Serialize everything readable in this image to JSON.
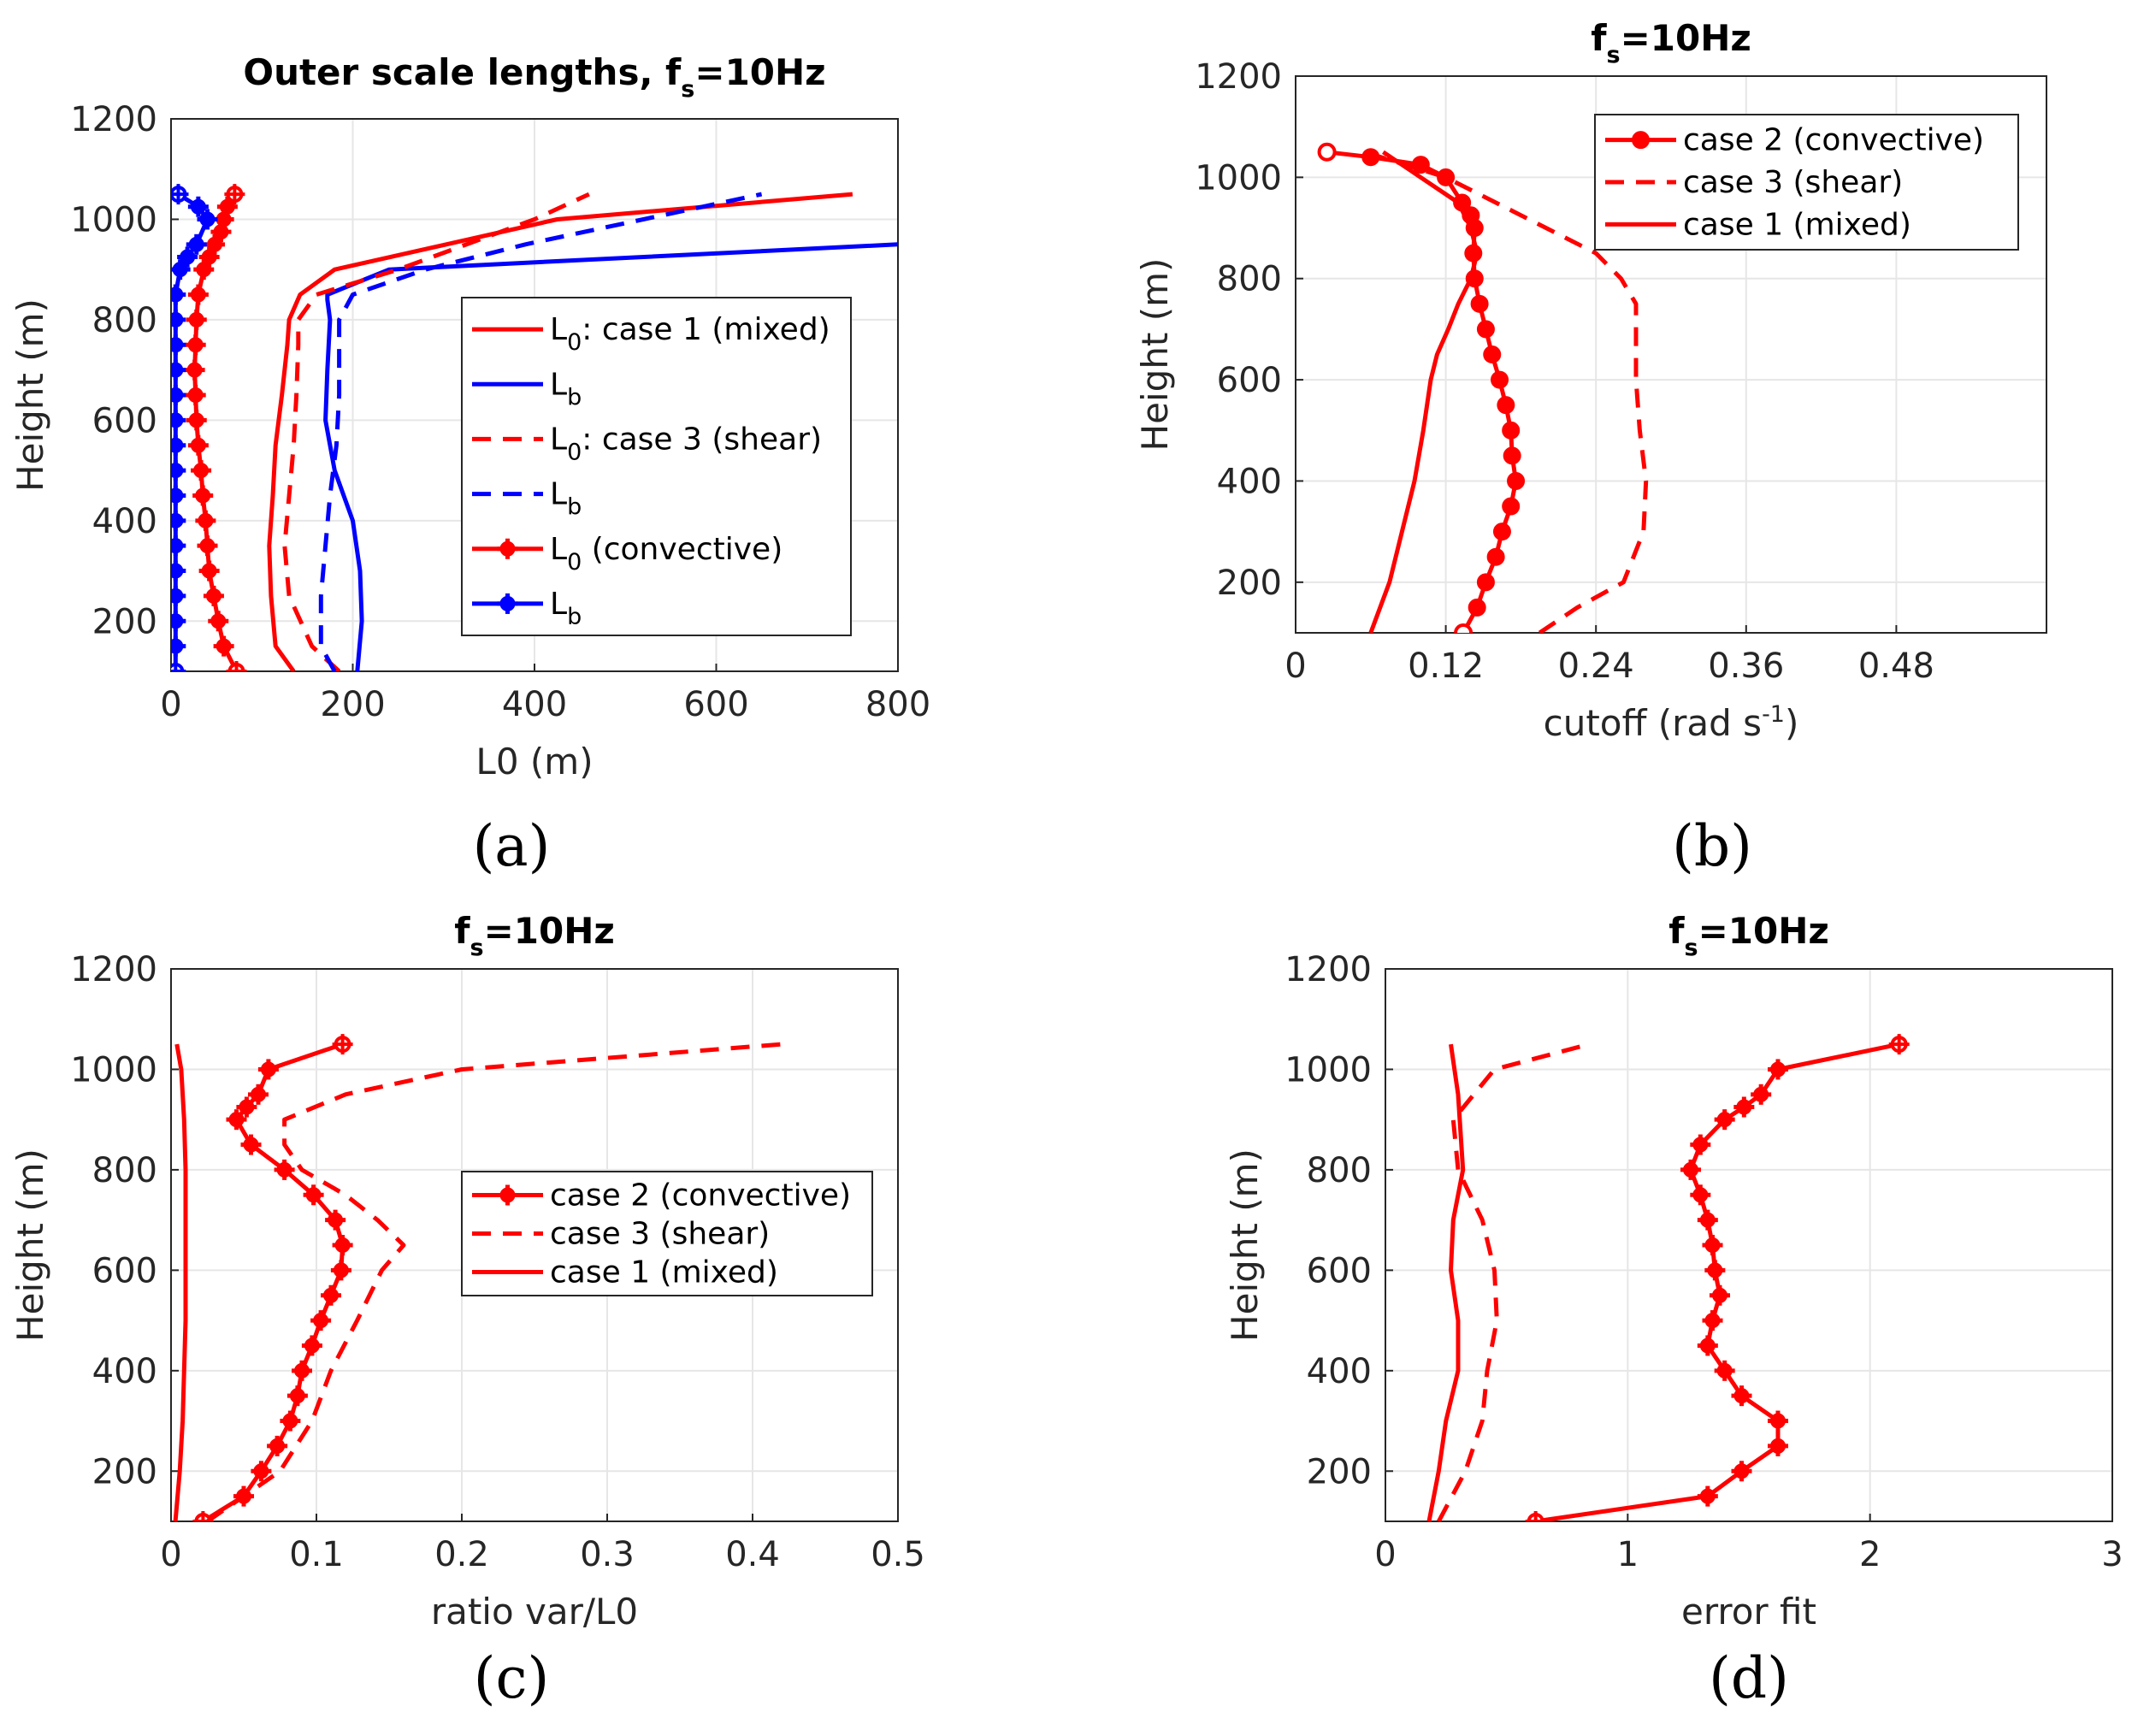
{
  "chart_data": [
    {
      "id": "a",
      "type": "line",
      "panel_label": "(a)",
      "title": "Outer scale lengths, f",
      "title_sub": "s",
      "title_suffix": "=10Hz",
      "xlabel": "L0 (m)",
      "ylabel": "Height (m)",
      "xlim": [
        0,
        800
      ],
      "ylim": [
        100,
        1200
      ],
      "xticks": [
        0,
        200,
        400,
        600,
        800
      ],
      "yticks": [
        200,
        400,
        600,
        800,
        1000,
        1200
      ],
      "grid": true,
      "legend_position": "center-right",
      "series": [
        {
          "legend": "L",
          "legend_sub": "0",
          "legend_suffix": ": case 1 (mixed)",
          "color": "#ff0000",
          "style": "solid",
          "marker": "none",
          "x": [
            135,
            115,
            110,
            108,
            112,
            115,
            122,
            128,
            130,
            142,
            180,
            425,
            750
          ],
          "y": [
            100,
            150,
            250,
            350,
            450,
            550,
            650,
            750,
            800,
            850,
            900,
            1000,
            1050
          ]
        },
        {
          "legend": "L",
          "legend_sub": "b",
          "legend_suffix": "",
          "color": "#0000ff",
          "style": "solid",
          "marker": "none",
          "x": [
            205,
            210,
            208,
            200,
            180,
            170,
            172,
            175,
            172,
            172,
            240,
            800
          ],
          "y": [
            100,
            200,
            300,
            400,
            500,
            600,
            700,
            800,
            840,
            850,
            900,
            950
          ]
        },
        {
          "legend": "L",
          "legend_sub": "0",
          "legend_suffix": ": case 3 (shear)",
          "color": "#ff0000",
          "style": "dash",
          "marker": "none",
          "x": [
            185,
            155,
            130,
            125,
            130,
            135,
            138,
            140,
            140,
            160,
            250,
            400,
            460
          ],
          "y": [
            100,
            150,
            250,
            350,
            450,
            550,
            650,
            750,
            800,
            850,
            900,
            1000,
            1050
          ]
        },
        {
          "legend": "L",
          "legend_sub": "b",
          "legend_suffix": "",
          "color": "#0000ff",
          "style": "dash",
          "marker": "none",
          "x": [
            180,
            165,
            165,
            170,
            175,
            182,
            185,
            185,
            185,
            200,
            280,
            390,
            650
          ],
          "y": [
            100,
            150,
            250,
            350,
            450,
            550,
            650,
            750,
            800,
            850,
            900,
            950,
            1050
          ]
        },
        {
          "legend": "L",
          "legend_sub": "0",
          "legend_suffix": " (convective)",
          "color": "#ff0000",
          "style": "solid",
          "marker": "plus",
          "x": [
            72,
            58,
            52,
            47,
            42,
            40,
            38,
            35,
            33,
            30,
            28,
            27,
            26,
            27,
            28,
            30,
            36,
            42,
            48,
            55,
            58,
            62,
            70
          ],
          "y": [
            100,
            150,
            200,
            250,
            300,
            350,
            400,
            450,
            500,
            550,
            600,
            650,
            700,
            750,
            800,
            850,
            900,
            925,
            950,
            975,
            1000,
            1025,
            1050
          ]
        },
        {
          "legend": "L",
          "legend_sub": "b",
          "legend_suffix": "",
          "color": "#0000ff",
          "style": "solid",
          "marker": "plus",
          "x": [
            5,
            5,
            5,
            5,
            5,
            5,
            5,
            5,
            5,
            5,
            5,
            5,
            5,
            5,
            5,
            5,
            10,
            18,
            28,
            40,
            30,
            8
          ],
          "y": [
            100,
            150,
            200,
            250,
            300,
            350,
            400,
            450,
            500,
            550,
            600,
            650,
            700,
            750,
            800,
            850,
            900,
            925,
            950,
            1000,
            1025,
            1050
          ]
        }
      ]
    },
    {
      "id": "b",
      "type": "line",
      "panel_label": "(b)",
      "title": "f",
      "title_sub": "s",
      "title_suffix": "=10Hz",
      "xlabel": "cutoff (rad s",
      "xlabel_sup": "-1",
      "xlabel_suffix": ")",
      "ylabel": "Height (m)",
      "xlim": [
        0,
        0.6
      ],
      "ylim": [
        100,
        1200
      ],
      "xticks": [
        0,
        0.12,
        0.24,
        0.36,
        0.48
      ],
      "xtick_labels": [
        "0",
        "0.12",
        "0.24",
        "0.36",
        "0.48"
      ],
      "yticks": [
        200,
        400,
        600,
        800,
        1000,
        1200
      ],
      "grid": true,
      "legend_position": "top-right",
      "series": [
        {
          "legend": "case 2 (convective)",
          "color": "#ff0000",
          "style": "solid",
          "marker": "circle",
          "x": [
            0.134,
            0.145,
            0.152,
            0.16,
            0.165,
            0.172,
            0.176,
            0.173,
            0.172,
            0.168,
            0.163,
            0.157,
            0.152,
            0.147,
            0.143,
            0.142,
            0.143,
            0.14,
            0.133,
            0.12,
            0.1,
            0.06,
            0.025
          ],
          "y": [
            100,
            150,
            200,
            250,
            300,
            350,
            400,
            450,
            500,
            550,
            600,
            650,
            700,
            750,
            800,
            850,
            900,
            925,
            950,
            1000,
            1025,
            1040,
            1050
          ]
        },
        {
          "legend": "case 3 (shear)",
          "color": "#ff0000",
          "style": "dash",
          "marker": "none",
          "x": [
            0.195,
            0.225,
            0.262,
            0.278,
            0.28,
            0.275,
            0.272,
            0.272,
            0.272,
            0.26,
            0.24,
            0.2,
            0.12,
            0.055
          ],
          "y": [
            100,
            150,
            200,
            300,
            400,
            500,
            600,
            700,
            750,
            800,
            850,
            900,
            1000,
            1050
          ]
        },
        {
          "legend": "case 1 (mixed)",
          "color": "#ff0000",
          "style": "solid",
          "marker": "none",
          "x": [
            0.06,
            0.075,
            0.085,
            0.095,
            0.102,
            0.108,
            0.113,
            0.122,
            0.13,
            0.14,
            0.145,
            0.14,
            0.13,
            0.1,
            0.07
          ],
          "y": [
            100,
            200,
            300,
            400,
            500,
            600,
            650,
            700,
            750,
            800,
            850,
            900,
            950,
            1000,
            1050
          ]
        }
      ]
    },
    {
      "id": "c",
      "type": "line",
      "panel_label": "(c)",
      "title": "f",
      "title_sub": "s",
      "title_suffix": "=10Hz",
      "xlabel": "ratio var/L0",
      "ylabel": "Height (m)",
      "xlim": [
        0,
        0.5
      ],
      "ylim": [
        100,
        1200
      ],
      "xticks": [
        0,
        0.1,
        0.2,
        0.3,
        0.4,
        0.5
      ],
      "xtick_labels": [
        "0",
        "0.1",
        "0.2",
        "0.3",
        "0.4",
        "0.5"
      ],
      "yticks": [
        200,
        400,
        600,
        800,
        1000,
        1200
      ],
      "grid": true,
      "legend_position": "center-right",
      "series": [
        {
          "legend": "case 2 (convective)",
          "color": "#ff0000",
          "style": "solid",
          "marker": "plus",
          "x": [
            0.022,
            0.05,
            0.062,
            0.073,
            0.082,
            0.087,
            0.09,
            0.097,
            0.103,
            0.11,
            0.117,
            0.118,
            0.113,
            0.098,
            0.078,
            0.055,
            0.045,
            0.052,
            0.06,
            0.067,
            0.118
          ],
          "y": [
            100,
            150,
            200,
            250,
            300,
            350,
            400,
            450,
            500,
            550,
            600,
            650,
            700,
            750,
            800,
            850,
            900,
            925,
            950,
            1000,
            1050
          ]
        },
        {
          "legend": "case 3 (shear)",
          "color": "#ff0000",
          "style": "dash",
          "marker": "none",
          "x": [
            0.025,
            0.075,
            0.097,
            0.11,
            0.128,
            0.145,
            0.16,
            0.142,
            0.12,
            0.09,
            0.078,
            0.078,
            0.12,
            0.2,
            0.42
          ],
          "y": [
            100,
            200,
            300,
            400,
            500,
            600,
            650,
            700,
            750,
            800,
            850,
            900,
            950,
            1000,
            1050
          ]
        },
        {
          "legend": "case 1 (mixed)",
          "color": "#ff0000",
          "style": "solid",
          "marker": "none",
          "x": [
            0.003,
            0.006,
            0.008,
            0.01,
            0.01,
            0.01,
            0.009,
            0.007,
            0.004
          ],
          "y": [
            100,
            200,
            300,
            500,
            600,
            800,
            900,
            1000,
            1050
          ]
        }
      ]
    },
    {
      "id": "d",
      "type": "line",
      "panel_label": "(d)",
      "title": "f",
      "title_sub": "s",
      "title_suffix": "=10Hz",
      "xlabel": "error fit",
      "ylabel": "Height (m)",
      "xlim": [
        0,
        3
      ],
      "ylim": [
        100,
        1200
      ],
      "xticks": [
        0,
        1,
        2,
        3
      ],
      "xtick_labels": [
        "0",
        "1",
        "2",
        "3"
      ],
      "yticks": [
        200,
        400,
        600,
        800,
        1000,
        1200
      ],
      "grid": true,
      "legend_position": "none",
      "series": [
        {
          "legend": "case 2 (convective)",
          "color": "#ff0000",
          "style": "solid",
          "marker": "plus",
          "x": [
            0.62,
            1.33,
            1.47,
            1.62,
            1.62,
            1.47,
            1.4,
            1.33,
            1.35,
            1.38,
            1.36,
            1.35,
            1.33,
            1.3,
            1.26,
            1.3,
            1.4,
            1.48,
            1.55,
            1.62,
            2.12
          ],
          "y": [
            100,
            150,
            200,
            250,
            300,
            350,
            400,
            450,
            500,
            550,
            600,
            650,
            700,
            750,
            800,
            850,
            900,
            925,
            950,
            1000,
            1050
          ]
        },
        {
          "legend": "case 3 (shear)",
          "color": "#ff0000",
          "style": "dash",
          "marker": "none",
          "x": [
            0.22,
            0.33,
            0.4,
            0.42,
            0.46,
            0.45,
            0.4,
            0.3,
            0.28,
            0.45,
            0.84
          ],
          "y": [
            100,
            200,
            300,
            400,
            500,
            600,
            700,
            800,
            900,
            1000,
            1050
          ]
        },
        {
          "legend": "case 1 (mixed)",
          "color": "#ff0000",
          "style": "solid",
          "marker": "none",
          "x": [
            0.18,
            0.22,
            0.25,
            0.3,
            0.3,
            0.27,
            0.28,
            0.32,
            0.3,
            0.27
          ],
          "y": [
            100,
            200,
            300,
            400,
            500,
            600,
            700,
            800,
            950,
            1050
          ]
        }
      ]
    }
  ]
}
